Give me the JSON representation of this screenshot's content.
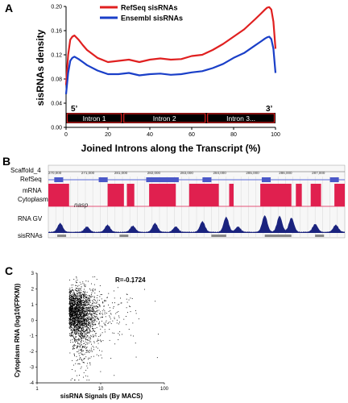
{
  "panels": {
    "a": {
      "letter": "A"
    },
    "b": {
      "letter": "B"
    },
    "c": {
      "letter": "C"
    }
  },
  "chart_data": [
    {
      "type": "line",
      "panel": "A",
      "xlabel": "Joined Introns along the Transcript (%)",
      "ylabel": "sisRNAs density",
      "xlim": [
        0,
        100
      ],
      "ylim": [
        0.0,
        0.2
      ],
      "xticks": [
        "0",
        "20",
        "40",
        "60",
        "80",
        "100"
      ],
      "yticks": [
        "0.00",
        "0.04",
        "0.08",
        "0.12",
        "0.16",
        "0.20"
      ],
      "legend_placement": "top",
      "annotations": {
        "five_prime": "5’",
        "three_prime": "3’"
      },
      "introns": [
        "Intron 1",
        "Intron 2",
        "Intron 3..."
      ],
      "x": [
        0,
        1,
        2,
        3,
        4,
        6,
        8,
        10,
        15,
        20,
        25,
        30,
        35,
        40,
        45,
        50,
        55,
        60,
        65,
        70,
        75,
        80,
        85,
        90,
        93,
        95,
        96,
        97,
        98,
        99,
        100
      ],
      "series": [
        {
          "name": "RefSeq sisRNAs",
          "color": "#e02020",
          "values": [
            0.07,
            0.12,
            0.145,
            0.15,
            0.152,
            0.145,
            0.136,
            0.128,
            0.115,
            0.108,
            0.11,
            0.112,
            0.108,
            0.112,
            0.114,
            0.112,
            0.113,
            0.118,
            0.12,
            0.128,
            0.138,
            0.15,
            0.162,
            0.178,
            0.188,
            0.195,
            0.198,
            0.199,
            0.195,
            0.175,
            0.13
          ]
        },
        {
          "name": "Ensembl sisRNAs",
          "color": "#1a3fc8",
          "values": [
            0.055,
            0.09,
            0.11,
            0.115,
            0.117,
            0.113,
            0.108,
            0.103,
            0.094,
            0.088,
            0.088,
            0.09,
            0.086,
            0.088,
            0.089,
            0.087,
            0.088,
            0.091,
            0.093,
            0.098,
            0.105,
            0.115,
            0.123,
            0.135,
            0.142,
            0.147,
            0.149,
            0.15,
            0.146,
            0.13,
            0.09
          ]
        }
      ]
    },
    {
      "type": "genome-track",
      "panel": "B",
      "scaffold": "Scaffold_4",
      "tracks": [
        "RefSeq",
        "mRNA Cytoplasm",
        "RNA GV",
        "sisRNAs"
      ],
      "gene": "nasp",
      "coordinate_ticks": [
        "270,000",
        "271,000",
        "281,000",
        "282,000",
        "283,000",
        "284,000",
        "285,000",
        "286,000",
        "287,000"
      ],
      "mrna_blocks": [
        [
          0.0,
          0.07
        ],
        [
          0.2,
          0.255
        ],
        [
          0.265,
          0.29
        ],
        [
          0.34,
          0.43
        ],
        [
          0.475,
          0.575
        ],
        [
          0.61,
          0.625
        ],
        [
          0.715,
          0.82
        ],
        [
          0.835,
          0.855
        ],
        [
          0.885,
          0.92
        ],
        [
          0.965,
          1.0
        ]
      ],
      "gv_peaks": [
        [
          0.04,
          0.5
        ],
        [
          0.13,
          0.3
        ],
        [
          0.2,
          0.4
        ],
        [
          0.285,
          0.35
        ],
        [
          0.36,
          0.5
        ],
        [
          0.43,
          0.3
        ],
        [
          0.52,
          0.6
        ],
        [
          0.6,
          0.85
        ],
        [
          0.64,
          0.3
        ],
        [
          0.73,
          0.95
        ],
        [
          0.78,
          0.9
        ],
        [
          0.82,
          0.8
        ],
        [
          0.9,
          0.45
        ],
        [
          0.97,
          0.4
        ]
      ],
      "sis_bars": [
        [
          0.03,
          0.06
        ],
        [
          0.24,
          0.27
        ],
        [
          0.55,
          0.6
        ],
        [
          0.73,
          0.82
        ],
        [
          0.9,
          0.93
        ]
      ]
    },
    {
      "type": "scatter",
      "panel": "C",
      "xlabel": "sisRNA Signals (By MACS)",
      "ylabel": "Cytoplasm RNA (log10(FPKM))",
      "xscale": "log",
      "xlim": [
        1,
        100
      ],
      "ylim": [
        -4,
        3
      ],
      "xticks": [
        "1",
        "10",
        "100"
      ],
      "yticks": [
        "3",
        "2",
        "1",
        "0",
        "-1",
        "-2",
        "-3",
        "-4"
      ],
      "annotation": "R=-0.1724",
      "cloud_center": {
        "log10_x": 0.6,
        "y": 0.6
      },
      "point_count": 2400
    }
  ]
}
